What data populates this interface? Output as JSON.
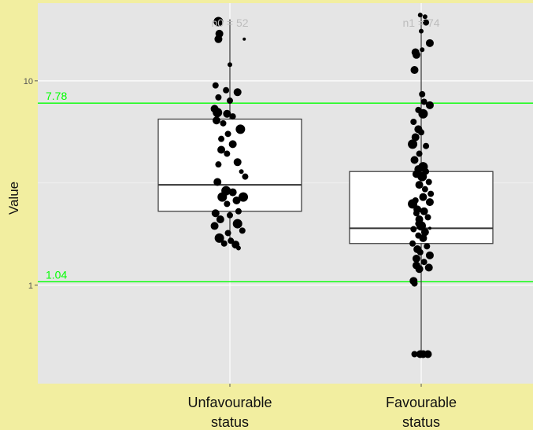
{
  "chart_data": {
    "type": "box",
    "ylabel": "Value",
    "y_scale": "log10",
    "ylim": [
      0.33,
      24
    ],
    "y_ticks": [
      {
        "value": 1,
        "label": "1"
      },
      {
        "value": 10,
        "label": "10"
      }
    ],
    "categories": [
      "Unfavourable\nstatus",
      "Favourable\nstatus"
    ],
    "category_lines": [
      [
        "Unfavourable",
        "status"
      ],
      [
        "Favourable",
        "status"
      ]
    ],
    "count_labels": [
      "n0 = 52",
      "n1 = 74"
    ],
    "reference_lines": [
      {
        "value": 7.78,
        "label": "7.78",
        "color": "#00ff00"
      },
      {
        "value": 1.04,
        "label": "1.04",
        "color": "#00ff00"
      }
    ],
    "boxes": [
      {
        "category": "Unfavourable\nstatus",
        "q1": 2.3,
        "median": 3.1,
        "q3": 6.5,
        "whisker_low": 1.6,
        "whisker_high": 20
      },
      {
        "category": "Favourable\nstatus",
        "q1": 1.6,
        "median": 1.9,
        "q3": 3.6,
        "whisker_low": 0.45,
        "whisker_high": 21
      }
    ],
    "points": [
      {
        "category": 0,
        "jitter": -0.12,
        "value": 19.5,
        "size": 6
      },
      {
        "category": 0,
        "jitter": -0.11,
        "value": 17.0,
        "size": 5
      },
      {
        "category": 0,
        "jitter": -0.12,
        "value": 16.0,
        "size": 5
      },
      {
        "category": 0,
        "jitter": 0.15,
        "value": 16.0,
        "size": 2
      },
      {
        "category": 0,
        "jitter": 0.0,
        "value": 12.0,
        "size": 3
      },
      {
        "category": 0,
        "jitter": -0.15,
        "value": 9.5,
        "size": 4
      },
      {
        "category": 0,
        "jitter": -0.04,
        "value": 9.0,
        "size": 4
      },
      {
        "category": 0,
        "jitter": 0.08,
        "value": 8.8,
        "size": 5
      },
      {
        "category": 0,
        "jitter": -0.12,
        "value": 8.3,
        "size": 4
      },
      {
        "category": 0,
        "jitter": 0.0,
        "value": 8.0,
        "size": 4
      },
      {
        "category": 0,
        "jitter": -0.16,
        "value": 7.3,
        "size": 5
      },
      {
        "category": 0,
        "jitter": -0.13,
        "value": 7.0,
        "size": 6
      },
      {
        "category": 0,
        "jitter": -0.03,
        "value": 6.9,
        "size": 5
      },
      {
        "category": 0,
        "jitter": 0.03,
        "value": 6.7,
        "size": 4
      },
      {
        "category": 0,
        "jitter": -0.14,
        "value": 6.4,
        "size": 5
      },
      {
        "category": 0,
        "jitter": -0.07,
        "value": 6.2,
        "size": 4
      },
      {
        "category": 0,
        "jitter": 0.11,
        "value": 5.8,
        "size": 6
      },
      {
        "category": 0,
        "jitter": -0.02,
        "value": 5.5,
        "size": 4
      },
      {
        "category": 0,
        "jitter": -0.09,
        "value": 5.2,
        "size": 4
      },
      {
        "category": 0,
        "jitter": 0.03,
        "value": 4.9,
        "size": 5
      },
      {
        "category": 0,
        "jitter": -0.09,
        "value": 4.6,
        "size": 5
      },
      {
        "category": 0,
        "jitter": -0.03,
        "value": 4.4,
        "size": 4
      },
      {
        "category": 0,
        "jitter": 0.08,
        "value": 4.0,
        "size": 5
      },
      {
        "category": 0,
        "jitter": -0.12,
        "value": 3.9,
        "size": 4
      },
      {
        "category": 0,
        "jitter": 0.12,
        "value": 3.6,
        "size": 3
      },
      {
        "category": 0,
        "jitter": 0.16,
        "value": 3.4,
        "size": 4
      },
      {
        "category": 0,
        "jitter": -0.13,
        "value": 3.2,
        "size": 5
      },
      {
        "category": 0,
        "jitter": -0.04,
        "value": 2.9,
        "size": 6
      },
      {
        "category": 0,
        "jitter": 0.03,
        "value": 2.85,
        "size": 5
      },
      {
        "category": 0,
        "jitter": -0.08,
        "value": 2.7,
        "size": 6
      },
      {
        "category": 0,
        "jitter": 0.14,
        "value": 2.7,
        "size": 6
      },
      {
        "category": 0,
        "jitter": 0.07,
        "value": 2.6,
        "size": 5
      },
      {
        "category": 0,
        "jitter": -0.03,
        "value": 2.5,
        "size": 4
      },
      {
        "category": 0,
        "jitter": 0.09,
        "value": 2.3,
        "size": 4
      },
      {
        "category": 0,
        "jitter": -0.15,
        "value": 2.25,
        "size": 5
      },
      {
        "category": 0,
        "jitter": 0.0,
        "value": 2.2,
        "size": 4
      },
      {
        "category": 0,
        "jitter": -0.1,
        "value": 2.1,
        "size": 5
      },
      {
        "category": 0,
        "jitter": 0.08,
        "value": 2.0,
        "size": 6
      },
      {
        "category": 0,
        "jitter": -0.16,
        "value": 1.95,
        "size": 5
      },
      {
        "category": 0,
        "jitter": 0.13,
        "value": 1.85,
        "size": 4
      },
      {
        "category": 0,
        "jitter": -0.02,
        "value": 1.8,
        "size": 4
      },
      {
        "category": 0,
        "jitter": -0.11,
        "value": 1.7,
        "size": 6
      },
      {
        "category": 0,
        "jitter": 0.01,
        "value": 1.65,
        "size": 4
      },
      {
        "category": 0,
        "jitter": -0.06,
        "value": 1.6,
        "size": 4
      },
      {
        "category": 0,
        "jitter": 0.06,
        "value": 1.58,
        "size": 5
      },
      {
        "category": 0,
        "jitter": 0.09,
        "value": 1.52,
        "size": 3
      },
      {
        "category": 1,
        "jitter": -0.01,
        "value": 21.0,
        "size": 3
      },
      {
        "category": 1,
        "jitter": 0.04,
        "value": 20.6,
        "size": 3
      },
      {
        "category": 1,
        "jitter": 0.05,
        "value": 19.3,
        "size": 4
      },
      {
        "category": 1,
        "jitter": 0.0,
        "value": 17.5,
        "size": 3
      },
      {
        "category": 1,
        "jitter": 0.09,
        "value": 15.3,
        "size": 5
      },
      {
        "category": 1,
        "jitter": 0.01,
        "value": 14.2,
        "size": 3
      },
      {
        "category": 1,
        "jitter": -0.06,
        "value": 13.8,
        "size": 5
      },
      {
        "category": 1,
        "jitter": -0.05,
        "value": 13.4,
        "size": 5
      },
      {
        "category": 1,
        "jitter": -0.07,
        "value": 11.3,
        "size": 5
      },
      {
        "category": 1,
        "jitter": 0.01,
        "value": 8.6,
        "size": 4
      },
      {
        "category": 1,
        "jitter": 0.03,
        "value": 7.9,
        "size": 4
      },
      {
        "category": 1,
        "jitter": 0.09,
        "value": 7.6,
        "size": 5
      },
      {
        "category": 1,
        "jitter": -0.03,
        "value": 7.2,
        "size": 4
      },
      {
        "category": 1,
        "jitter": 0.02,
        "value": 6.9,
        "size": 6
      },
      {
        "category": 1,
        "jitter": -0.08,
        "value": 6.3,
        "size": 4
      },
      {
        "category": 1,
        "jitter": -0.03,
        "value": 5.8,
        "size": 5
      },
      {
        "category": 1,
        "jitter": 0.0,
        "value": 5.6,
        "size": 4
      },
      {
        "category": 1,
        "jitter": -0.06,
        "value": 5.3,
        "size": 5
      },
      {
        "category": 1,
        "jitter": -0.09,
        "value": 4.9,
        "size": 6
      },
      {
        "category": 1,
        "jitter": 0.05,
        "value": 4.8,
        "size": 4
      },
      {
        "category": 1,
        "jitter": -0.02,
        "value": 4.4,
        "size": 4
      },
      {
        "category": 1,
        "jitter": -0.07,
        "value": 4.1,
        "size": 5
      },
      {
        "category": 1,
        "jitter": 0.02,
        "value": 3.8,
        "size": 6
      },
      {
        "category": 1,
        "jitter": -0.03,
        "value": 3.7,
        "size": 5
      },
      {
        "category": 1,
        "jitter": 0.05,
        "value": 3.6,
        "size": 4
      },
      {
        "category": 1,
        "jitter": -0.05,
        "value": 3.5,
        "size": 5
      },
      {
        "category": 1,
        "jitter": 0.01,
        "value": 3.4,
        "size": 6
      },
      {
        "category": 1,
        "jitter": 0.08,
        "value": 3.2,
        "size": 4
      },
      {
        "category": 1,
        "jitter": -0.02,
        "value": 3.1,
        "size": 5
      },
      {
        "category": 1,
        "jitter": 0.04,
        "value": 2.95,
        "size": 4
      },
      {
        "category": 1,
        "jitter": 0.1,
        "value": 2.8,
        "size": 4
      },
      {
        "category": 1,
        "jitter": 0.02,
        "value": 2.7,
        "size": 5
      },
      {
        "category": 1,
        "jitter": -0.06,
        "value": 2.6,
        "size": 4
      },
      {
        "category": 1,
        "jitter": 0.09,
        "value": 2.55,
        "size": 5
      },
      {
        "category": 1,
        "jitter": -0.09,
        "value": 2.5,
        "size": 6
      },
      {
        "category": 1,
        "jitter": -0.04,
        "value": 2.35,
        "size": 5
      },
      {
        "category": 1,
        "jitter": 0.03,
        "value": 2.3,
        "size": 5
      },
      {
        "category": 1,
        "jitter": -0.05,
        "value": 2.25,
        "size": 4
      },
      {
        "category": 1,
        "jitter": 0.07,
        "value": 2.15,
        "size": 4
      },
      {
        "category": 1,
        "jitter": -0.02,
        "value": 2.1,
        "size": 5
      },
      {
        "category": 1,
        "jitter": -0.03,
        "value": 2.0,
        "size": 4
      },
      {
        "category": 1,
        "jitter": 0.0,
        "value": 1.95,
        "size": 6
      },
      {
        "category": 1,
        "jitter": 0.09,
        "value": 1.9,
        "size": 2
      },
      {
        "category": 1,
        "jitter": -0.08,
        "value": 1.88,
        "size": 4
      },
      {
        "category": 1,
        "jitter": 0.04,
        "value": 1.82,
        "size": 5
      },
      {
        "category": 1,
        "jitter": -0.03,
        "value": 1.75,
        "size": 4
      },
      {
        "category": 1,
        "jitter": 0.02,
        "value": 1.7,
        "size": 5
      },
      {
        "category": 1,
        "jitter": -0.09,
        "value": 1.6,
        "size": 4
      },
      {
        "category": 1,
        "jitter": 0.06,
        "value": 1.55,
        "size": 4
      },
      {
        "category": 1,
        "jitter": -0.04,
        "value": 1.5,
        "size": 5
      },
      {
        "category": 1,
        "jitter": -0.01,
        "value": 1.45,
        "size": 4
      },
      {
        "category": 1,
        "jitter": 0.09,
        "value": 1.4,
        "size": 5
      },
      {
        "category": 1,
        "jitter": -0.05,
        "value": 1.35,
        "size": 5
      },
      {
        "category": 1,
        "jitter": 0.03,
        "value": 1.3,
        "size": 4
      },
      {
        "category": 1,
        "jitter": -0.05,
        "value": 1.25,
        "size": 5
      },
      {
        "category": 1,
        "jitter": 0.08,
        "value": 1.22,
        "size": 5
      },
      {
        "category": 1,
        "jitter": -0.02,
        "value": 1.2,
        "size": 5
      },
      {
        "category": 1,
        "jitter": -0.08,
        "value": 1.05,
        "size": 5
      },
      {
        "category": 1,
        "jitter": -0.07,
        "value": 1.02,
        "size": 4
      },
      {
        "category": 1,
        "jitter": -0.07,
        "value": 0.46,
        "size": 4
      },
      {
        "category": 1,
        "jitter": -0.01,
        "value": 0.46,
        "size": 5
      },
      {
        "category": 1,
        "jitter": 0.02,
        "value": 0.46,
        "size": 5
      },
      {
        "category": 1,
        "jitter": 0.07,
        "value": 0.46,
        "size": 5
      }
    ],
    "colors": {
      "panel": "#e5e5e5",
      "page": "#f2eea0",
      "grid": "#ffffff",
      "points": "#000000",
      "count_labels": "#bdbdbd",
      "reference": "#00ff00"
    },
    "grid": true,
    "legend": "none"
  }
}
